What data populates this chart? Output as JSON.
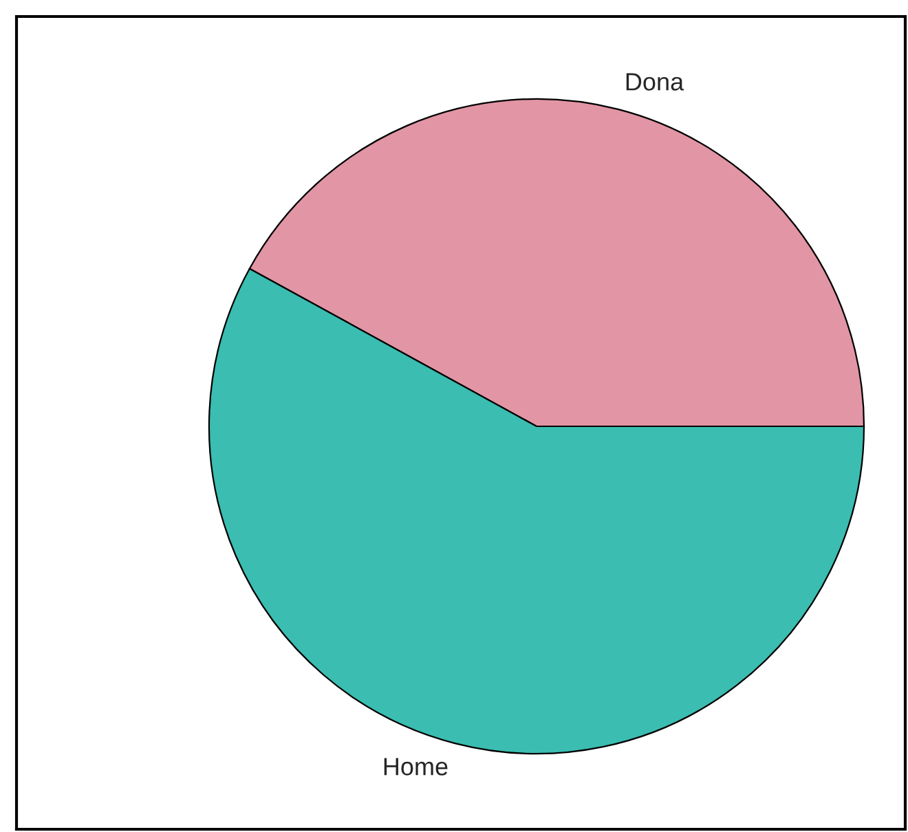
{
  "chart_data": {
    "type": "pie",
    "categories": [
      "Dona",
      "Home"
    ],
    "values": [
      42,
      58
    ],
    "colors": [
      "#e295a5",
      "#3bbdb1"
    ]
  }
}
